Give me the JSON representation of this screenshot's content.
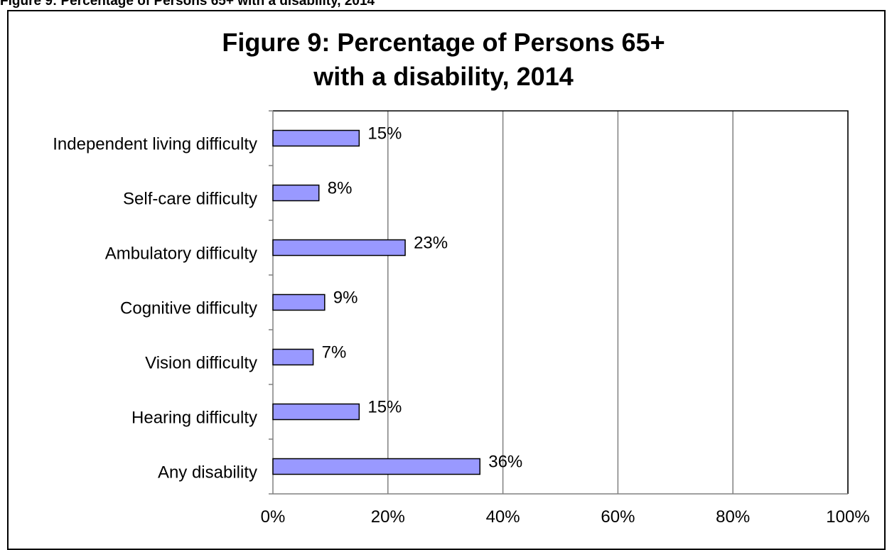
{
  "caption": "Figure 9: Percentage of Persons 65+ with a disability, 2014",
  "chart_data": {
    "type": "bar",
    "orientation": "horizontal",
    "title_lines": [
      "Figure 9: Percentage of Persons 65+",
      "with a disability, 2014"
    ],
    "categories": [
      "Independent living difficulty",
      "Self-care difficulty",
      "Ambulatory difficulty",
      "Cognitive difficulty",
      "Vision difficulty",
      "Hearing difficulty",
      "Any disability"
    ],
    "values": [
      15,
      8,
      23,
      9,
      7,
      15,
      36
    ],
    "data_labels": [
      "15%",
      "8%",
      "23%",
      "9%",
      "7%",
      "15%",
      "36%"
    ],
    "xlim": [
      0,
      100
    ],
    "xticks": [
      0,
      20,
      40,
      60,
      80,
      100
    ],
    "xtick_labels": [
      "0%",
      "20%",
      "40%",
      "60%",
      "80%",
      "100%"
    ],
    "grid": "vertical",
    "bar_color": "#9999ff",
    "legend": "none"
  }
}
